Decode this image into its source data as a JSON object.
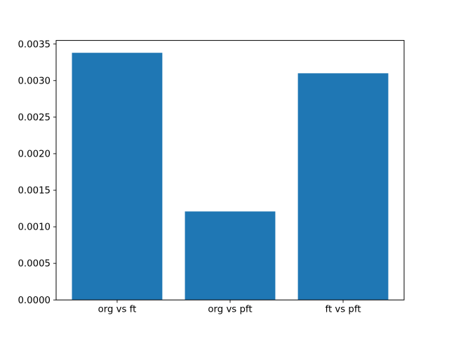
{
  "figure": {
    "background": "#ffffff"
  },
  "chart_data": {
    "type": "bar",
    "title": "",
    "xlabel": "",
    "ylabel": "",
    "categories": [
      "org vs ft",
      "org vs pft",
      "ft vs pft"
    ],
    "values": [
      0.00338,
      0.00121,
      0.0031
    ],
    "yticks": [
      0.0,
      0.0005,
      0.001,
      0.0015,
      0.002,
      0.0025,
      0.003,
      0.0035
    ],
    "ytick_labels": [
      "0.0000",
      "0.0005",
      "0.0010",
      "0.0015",
      "0.0020",
      "0.0025",
      "0.0030",
      "0.0035"
    ],
    "ylim": [
      0,
      0.003549
    ],
    "xlim": [
      -0.54,
      2.54
    ],
    "bar_width": 0.8,
    "bar_color": "#1f77b4",
    "axis_color": "#000000",
    "text_color": "#000000",
    "grid": false,
    "legend": null
  }
}
